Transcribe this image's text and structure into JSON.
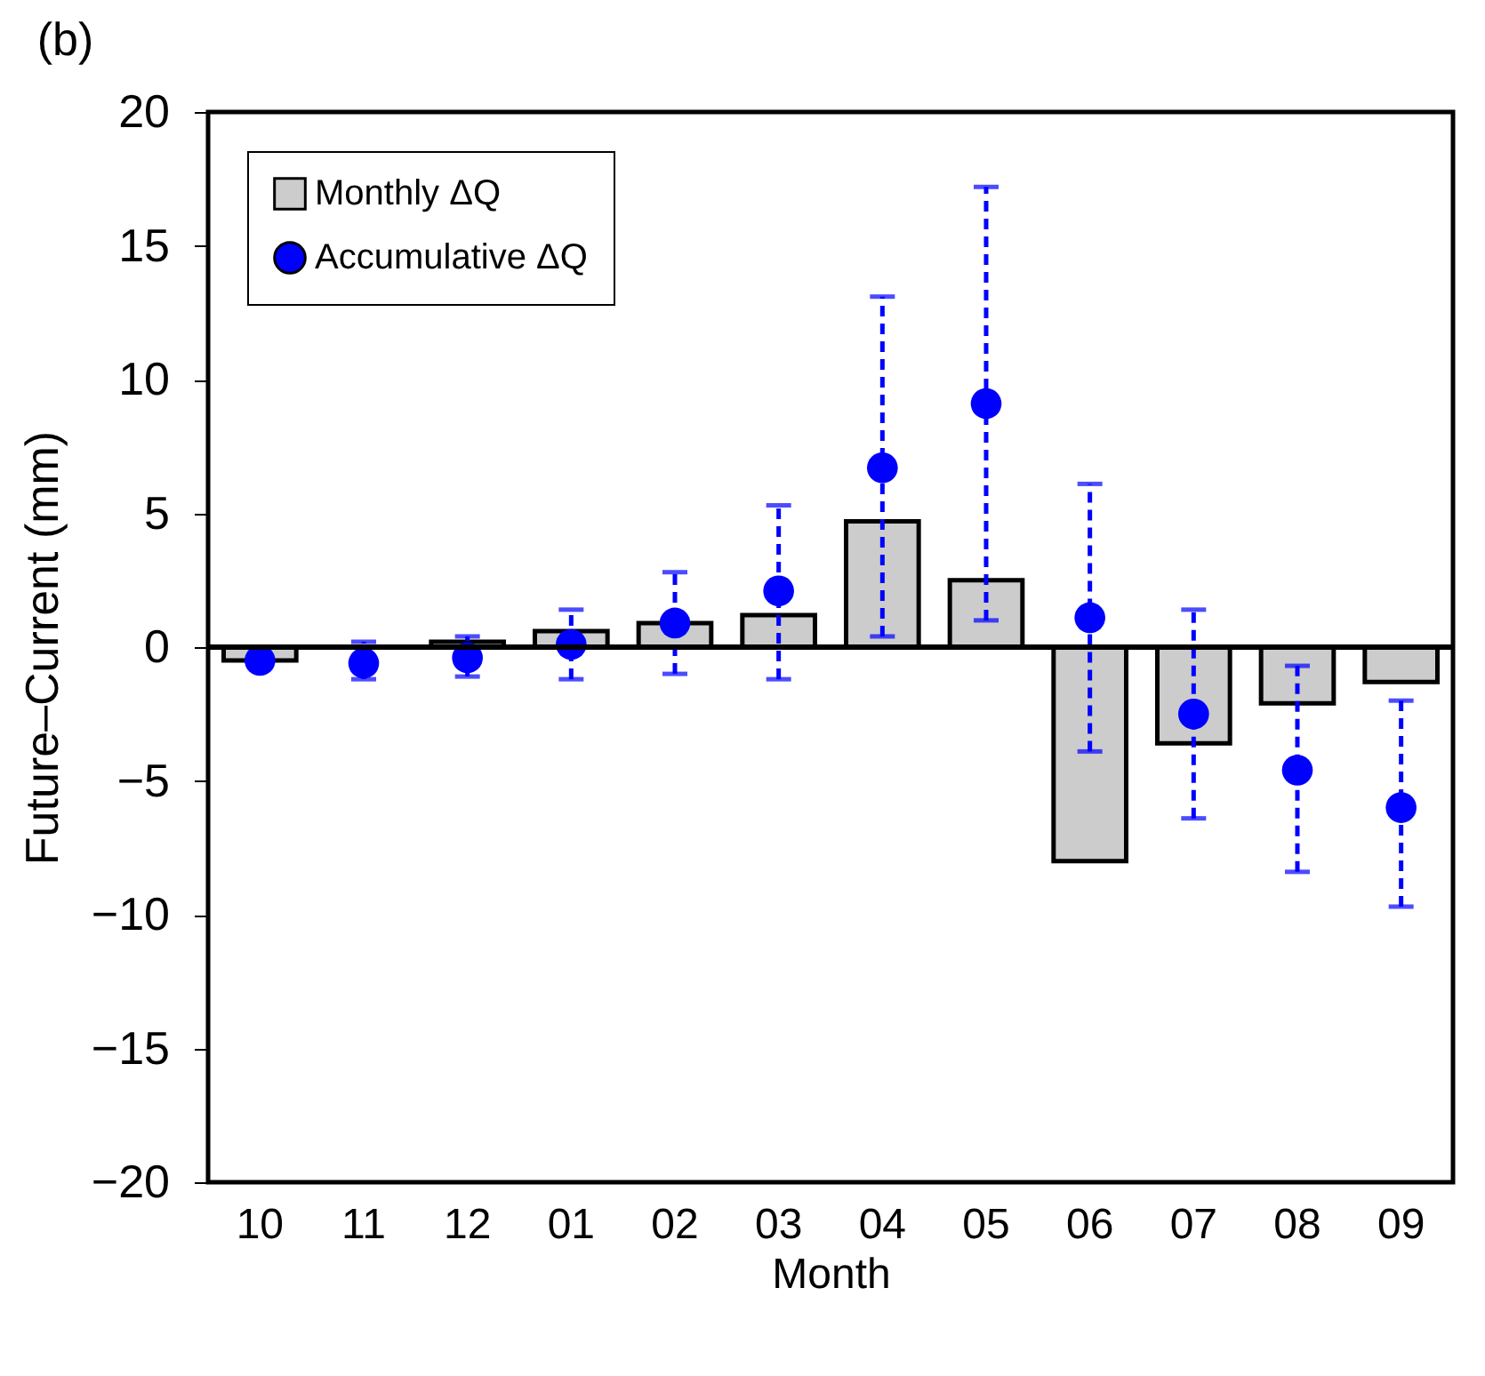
{
  "chart_data": {
    "type": "bar",
    "title": "(b)",
    "xlabel": "Month",
    "ylabel": "Future–Current (mm)",
    "categories": [
      "10",
      "11",
      "12",
      "01",
      "02",
      "03",
      "04",
      "05",
      "06",
      "07",
      "08",
      "09"
    ],
    "series": [
      {
        "name": "Monthly ΔQ",
        "color": "#cccccc",
        "values": [
          -0.5,
          null,
          0.2,
          0.6,
          0.9,
          1.2,
          4.7,
          2.5,
          -8.0,
          -3.6,
          -2.1,
          -1.3
        ]
      },
      {
        "name": "Accumulative ΔQ",
        "type": "scatter",
        "color": "#0000ff",
        "marker": "circle",
        "line_style": "dashed",
        "values": [
          -0.5,
          -0.6,
          -0.4,
          0.1,
          0.9,
          2.1,
          6.7,
          9.1,
          1.1,
          -2.5,
          -4.6,
          -6.0
        ],
        "errors": [
          null,
          [
            -1.2,
            0.2
          ],
          [
            -1.1,
            0.4
          ],
          [
            -1.2,
            1.4
          ],
          [
            -1.0,
            2.8
          ],
          [
            -1.2,
            5.3
          ],
          [
            0.4,
            13.1
          ],
          [
            1.0,
            17.2
          ],
          [
            -3.9,
            6.1
          ],
          [
            -6.4,
            1.4
          ],
          [
            -8.4,
            -0.7
          ],
          [
            -9.7,
            -2.0
          ]
        ]
      }
    ],
    "ylim": [
      -20,
      20
    ],
    "yticks": [
      -20,
      -15,
      -10,
      -5,
      0,
      5,
      10,
      15,
      20
    ],
    "ref_lines": [
      {
        "axis": "y",
        "value": 0,
        "color": "#000000"
      }
    ],
    "legend": "top left",
    "grid": false
  }
}
